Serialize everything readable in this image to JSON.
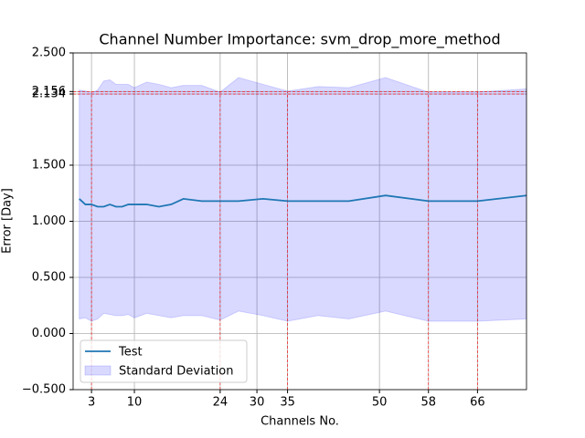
{
  "chart_data": {
    "type": "line",
    "title": "Channel Number Importance: svm_drop_more_method",
    "x_label": "Channels No.",
    "y_label": "Error [Day]",
    "x": [
      1,
      2,
      3,
      4,
      5,
      6,
      7,
      8,
      9,
      10,
      12,
      14,
      16,
      18,
      21,
      24,
      27,
      31,
      35,
      40,
      45,
      51,
      58,
      66,
      74
    ],
    "series": [
      {
        "name": "Test",
        "color": "#1f77b4",
        "values": [
          1.2,
          1.15,
          1.15,
          1.13,
          1.13,
          1.15,
          1.13,
          1.13,
          1.15,
          1.15,
          1.15,
          1.13,
          1.15,
          1.2,
          1.18,
          1.18,
          1.18,
          1.2,
          1.18,
          1.18,
          1.18,
          1.23,
          1.18,
          1.18,
          1.23
        ]
      },
      {
        "name": "Standard Deviation",
        "color": "#0000ff",
        "upper": [
          2.17,
          2.16,
          2.14,
          2.17,
          2.25,
          2.26,
          2.22,
          2.22,
          2.22,
          2.19,
          2.24,
          2.22,
          2.19,
          2.21,
          2.21,
          2.15,
          2.28,
          2.22,
          2.16,
          2.2,
          2.19,
          2.28,
          2.15,
          2.15,
          2.18
        ],
        "lower": [
          0.13,
          0.14,
          0.11,
          0.13,
          0.18,
          0.17,
          0.16,
          0.16,
          0.17,
          0.14,
          0.18,
          0.16,
          0.14,
          0.16,
          0.16,
          0.12,
          0.2,
          0.16,
          0.11,
          0.16,
          0.13,
          0.2,
          0.11,
          0.11,
          0.13
        ]
      }
    ],
    "threshold_lines": [
      2.134,
      2.156
    ],
    "threshold_color": "#ff0000",
    "marked_channels": [
      3,
      24,
      35,
      58,
      66
    ],
    "xlim": [
      0,
      74
    ],
    "ylim": [
      -0.5,
      2.5
    ],
    "xticks": [
      3,
      10,
      24,
      30,
      35,
      50,
      58,
      66
    ],
    "yticks": [
      {
        "value": -0.5,
        "label": "−0.500"
      },
      {
        "value": 0,
        "label": "0.000"
      },
      {
        "value": 0.5,
        "label": "0.500"
      },
      {
        "value": 1,
        "label": "1.000"
      },
      {
        "value": 1.5,
        "label": "1.500"
      },
      {
        "value": 2.134,
        "label": "2.134"
      },
      {
        "value": 2.156,
        "label": "2.156"
      },
      {
        "value": 2.5,
        "label": "2.500"
      }
    ],
    "grid": true,
    "legend": "lower left"
  }
}
